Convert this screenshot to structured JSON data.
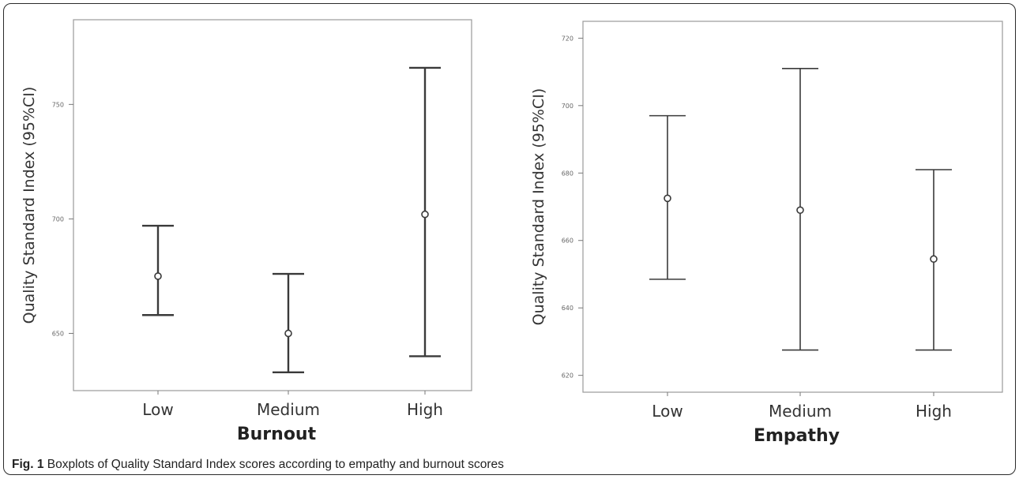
{
  "figure": {
    "caption_label": "Fig. 1",
    "caption_text": "Boxplots of Quality Standard Index scores according to empathy and burnout scores"
  },
  "chart_data": [
    {
      "type": "errorbar",
      "xlabel": "Burnout",
      "ylabel": "Quality Standard Index (95%CI)",
      "categories": [
        "Low",
        "Medium",
        "High"
      ],
      "yticks": [
        650,
        700,
        750
      ],
      "ytick_labels": [
        "650",
        "700",
        "750"
      ],
      "ylim": [
        625,
        787
      ],
      "series": [
        {
          "mean": [
            675,
            650,
            702
          ],
          "lower": [
            658,
            633,
            640
          ],
          "upper": [
            697,
            676,
            766
          ]
        }
      ]
    },
    {
      "type": "errorbar",
      "xlabel": "Empathy",
      "ylabel": "Quality Standard Index (95%CI)",
      "categories": [
        "Low",
        "Medium",
        "High"
      ],
      "yticks": [
        620,
        640,
        660,
        680,
        700,
        720
      ],
      "ytick_labels": [
        "620",
        "640",
        "660",
        "680",
        "700",
        "720"
      ],
      "ylim": [
        615,
        725
      ],
      "series": [
        {
          "mean": [
            672.5,
            669,
            654.5
          ],
          "lower": [
            648.5,
            627.5,
            627.5
          ],
          "upper": [
            697,
            711,
            681
          ]
        }
      ]
    }
  ]
}
